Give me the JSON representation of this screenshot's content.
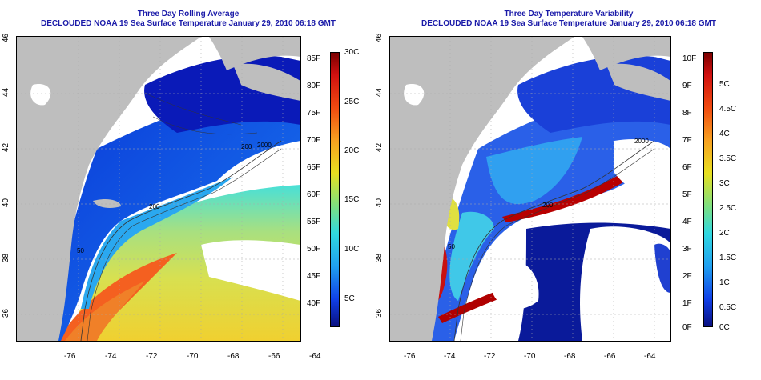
{
  "panels": [
    {
      "title": "Three Day Rolling Average",
      "subtitle": "DECLOUDED NOAA 19 Sea Surface Temperature January 29, 2010 06:18 GMT",
      "lat_ticks": [
        "46",
        "44",
        "42",
        "40",
        "38",
        "36"
      ],
      "lon_ticks": [
        "-76",
        "-74",
        "-72",
        "-70",
        "-68",
        "-66",
        "-64"
      ],
      "colorbar_f": [
        "85F",
        "80F",
        "75F",
        "70F",
        "65F",
        "60F",
        "55F",
        "50F",
        "45F",
        "40F"
      ],
      "colorbar_c": [
        "30C",
        "25C",
        "20C",
        "15C",
        "10C",
        "5C"
      ],
      "contour_labels": [
        "2000",
        "200",
        "50",
        "200"
      ]
    },
    {
      "title": "Three Day Temperature Variability",
      "subtitle": "DECLOUDED NOAA 19 Sea Surface Temperature January 29, 2010 06:18 GMT",
      "lat_ticks": [
        "46",
        "44",
        "42",
        "40",
        "38",
        "36"
      ],
      "lon_ticks": [
        "-76",
        "-74",
        "-72",
        "-70",
        "-68",
        "-66",
        "-64"
      ],
      "colorbar_f": [
        "10F",
        "9F",
        "8F",
        "7F",
        "6F",
        "5F",
        "4F",
        "3F",
        "2F",
        "1F",
        "0F"
      ],
      "colorbar_c": [
        "5C",
        "4.5C",
        "4C",
        "3.5C",
        "3C",
        "2.5C",
        "2C",
        "1.5C",
        "1C",
        "0.5C",
        "0C"
      ],
      "contour_labels": [
        "2000",
        "200",
        "50"
      ]
    }
  ],
  "colors": {
    "land": "#bebebe",
    "title": "#1a1aa8",
    "no_data": "#ffffff"
  }
}
